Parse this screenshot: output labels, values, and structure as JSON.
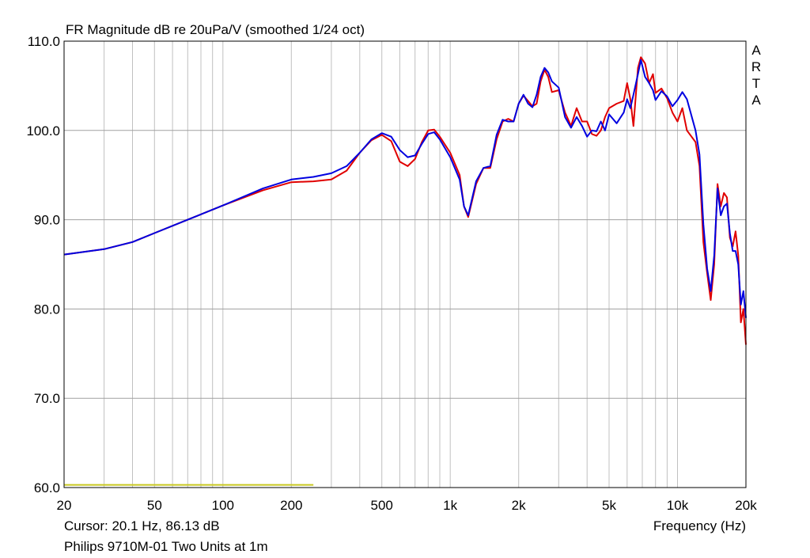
{
  "chart_data": {
    "type": "line",
    "title": "FR Magnitude dB re 20uPa/V (smoothed 1/24 oct)",
    "watermark": [
      "A",
      "R",
      "T",
      "A"
    ],
    "xlabel": "Frequency (Hz)",
    "x_scale": "log",
    "xlim": [
      20,
      20000
    ],
    "ylim": [
      60,
      110
    ],
    "grid": true,
    "x_tick_labels": [
      {
        "value": 20,
        "label": "20"
      },
      {
        "value": 50,
        "label": "50"
      },
      {
        "value": 100,
        "label": "100"
      },
      {
        "value": 200,
        "label": "200"
      },
      {
        "value": 500,
        "label": "500"
      },
      {
        "value": 1000,
        "label": "1k"
      },
      {
        "value": 2000,
        "label": "2k"
      },
      {
        "value": 5000,
        "label": "5k"
      },
      {
        "value": 10000,
        "label": "10k"
      },
      {
        "value": 20000,
        "label": "20k"
      }
    ],
    "y_tick_labels": [
      {
        "value": 110,
        "label": "110.0"
      },
      {
        "value": 100,
        "label": "100.0"
      },
      {
        "value": 90,
        "label": "90.0"
      },
      {
        "value": 80,
        "label": "80.0"
      },
      {
        "value": 70,
        "label": "70.0"
      },
      {
        "value": 60,
        "label": "60.0"
      }
    ],
    "series": [
      {
        "color": "#e00000",
        "points": [
          [
            20,
            86.1
          ],
          [
            30,
            86.7
          ],
          [
            40,
            87.5
          ],
          [
            50,
            88.5
          ],
          [
            70,
            90.0
          ],
          [
            100,
            91.6
          ],
          [
            150,
            93.3
          ],
          [
            200,
            94.2
          ],
          [
            250,
            94.3
          ],
          [
            300,
            94.5
          ],
          [
            350,
            95.5
          ],
          [
            400,
            97.5
          ],
          [
            450,
            98.9
          ],
          [
            500,
            99.5
          ],
          [
            550,
            98.8
          ],
          [
            600,
            96.5
          ],
          [
            650,
            96.0
          ],
          [
            700,
            96.8
          ],
          [
            750,
            98.7
          ],
          [
            800,
            100.0
          ],
          [
            850,
            100.1
          ],
          [
            900,
            99.3
          ],
          [
            1000,
            97.5
          ],
          [
            1100,
            95.0
          ],
          [
            1150,
            91.5
          ],
          [
            1200,
            90.3
          ],
          [
            1300,
            94.0
          ],
          [
            1400,
            95.8
          ],
          [
            1500,
            95.8
          ],
          [
            1600,
            99.0
          ],
          [
            1700,
            101.0
          ],
          [
            1800,
            101.3
          ],
          [
            1900,
            101.0
          ],
          [
            2000,
            103.0
          ],
          [
            2100,
            103.9
          ],
          [
            2200,
            103.3
          ],
          [
            2300,
            102.7
          ],
          [
            2400,
            103.0
          ],
          [
            2500,
            105.5
          ],
          [
            2600,
            106.8
          ],
          [
            2700,
            106.0
          ],
          [
            2800,
            104.3
          ],
          [
            3000,
            104.5
          ],
          [
            3200,
            102.0
          ],
          [
            3400,
            100.5
          ],
          [
            3600,
            102.5
          ],
          [
            3800,
            101.0
          ],
          [
            4000,
            101.0
          ],
          [
            4200,
            99.6
          ],
          [
            4400,
            99.4
          ],
          [
            4600,
            100.0
          ],
          [
            4800,
            101.5
          ],
          [
            5000,
            102.5
          ],
          [
            5400,
            103.0
          ],
          [
            5800,
            103.3
          ],
          [
            6000,
            105.3
          ],
          [
            6200,
            103.5
          ],
          [
            6400,
            100.5
          ],
          [
            6700,
            107.0
          ],
          [
            6900,
            108.2
          ],
          [
            7200,
            107.5
          ],
          [
            7500,
            105.3
          ],
          [
            7800,
            106.3
          ],
          [
            8000,
            104.2
          ],
          [
            8500,
            104.7
          ],
          [
            9000,
            103.6
          ],
          [
            9500,
            102.0
          ],
          [
            10000,
            101.0
          ],
          [
            10500,
            102.5
          ],
          [
            11000,
            100.0
          ],
          [
            12000,
            98.7
          ],
          [
            12500,
            96.0
          ],
          [
            13000,
            87.5
          ],
          [
            13500,
            84.0
          ],
          [
            14000,
            81.0
          ],
          [
            14500,
            85.0
          ],
          [
            15000,
            94.0
          ],
          [
            15500,
            91.5
          ],
          [
            16000,
            93.0
          ],
          [
            16500,
            92.5
          ],
          [
            17000,
            88.0
          ],
          [
            17500,
            87.0
          ],
          [
            18000,
            88.7
          ],
          [
            18500,
            86.0
          ],
          [
            19000,
            78.5
          ],
          [
            19500,
            80.0
          ],
          [
            20000,
            76.0
          ]
        ]
      },
      {
        "color": "#0000e0",
        "points": [
          [
            20,
            86.1
          ],
          [
            30,
            86.7
          ],
          [
            40,
            87.5
          ],
          [
            50,
            88.5
          ],
          [
            70,
            90.0
          ],
          [
            100,
            91.6
          ],
          [
            150,
            93.5
          ],
          [
            200,
            94.5
          ],
          [
            250,
            94.8
          ],
          [
            300,
            95.2
          ],
          [
            350,
            96.0
          ],
          [
            400,
            97.5
          ],
          [
            450,
            99.0
          ],
          [
            500,
            99.7
          ],
          [
            550,
            99.3
          ],
          [
            600,
            97.8
          ],
          [
            650,
            97.0
          ],
          [
            700,
            97.2
          ],
          [
            750,
            98.5
          ],
          [
            800,
            99.6
          ],
          [
            850,
            99.8
          ],
          [
            900,
            99.0
          ],
          [
            1000,
            97.0
          ],
          [
            1100,
            94.5
          ],
          [
            1150,
            91.5
          ],
          [
            1200,
            90.5
          ],
          [
            1300,
            94.3
          ],
          [
            1400,
            95.8
          ],
          [
            1500,
            96.0
          ],
          [
            1600,
            99.5
          ],
          [
            1700,
            101.2
          ],
          [
            1800,
            101.0
          ],
          [
            1900,
            101.0
          ],
          [
            2000,
            103.0
          ],
          [
            2100,
            104.0
          ],
          [
            2200,
            103.0
          ],
          [
            2300,
            102.6
          ],
          [
            2400,
            104.0
          ],
          [
            2500,
            106.0
          ],
          [
            2600,
            107.0
          ],
          [
            2700,
            106.5
          ],
          [
            2800,
            105.5
          ],
          [
            3000,
            104.8
          ],
          [
            3200,
            101.5
          ],
          [
            3400,
            100.3
          ],
          [
            3600,
            101.5
          ],
          [
            3800,
            100.5
          ],
          [
            4000,
            99.3
          ],
          [
            4200,
            100.0
          ],
          [
            4400,
            99.9
          ],
          [
            4600,
            101.0
          ],
          [
            4800,
            100.0
          ],
          [
            5000,
            101.8
          ],
          [
            5400,
            100.8
          ],
          [
            5800,
            102.0
          ],
          [
            6000,
            103.5
          ],
          [
            6200,
            102.5
          ],
          [
            6400,
            104.0
          ],
          [
            6700,
            106.3
          ],
          [
            6900,
            107.9
          ],
          [
            7200,
            106.0
          ],
          [
            7500,
            105.3
          ],
          [
            7800,
            104.5
          ],
          [
            8000,
            103.4
          ],
          [
            8500,
            104.4
          ],
          [
            9000,
            103.8
          ],
          [
            9500,
            102.7
          ],
          [
            10000,
            103.4
          ],
          [
            10500,
            104.3
          ],
          [
            11000,
            103.5
          ],
          [
            12000,
            100.0
          ],
          [
            12500,
            97.3
          ],
          [
            13000,
            89.5
          ],
          [
            13500,
            84.5
          ],
          [
            14000,
            82.0
          ],
          [
            14500,
            86.0
          ],
          [
            15000,
            93.5
          ],
          [
            15500,
            90.5
          ],
          [
            16000,
            91.5
          ],
          [
            16500,
            91.8
          ],
          [
            17000,
            88.5
          ],
          [
            17500,
            86.5
          ],
          [
            18000,
            86.5
          ],
          [
            18500,
            85.0
          ],
          [
            19000,
            80.5
          ],
          [
            19500,
            82.0
          ],
          [
            20000,
            79.0
          ]
        ]
      },
      {
        "color": "#c8c820",
        "points": [
          [
            20,
            60.3
          ],
          [
            250,
            60.3
          ]
        ]
      }
    ]
  },
  "cursor_readout": "Cursor: 20.1 Hz, 86.13 dB",
  "footer_title": "Philips 9710M-01 Two Units at 1m"
}
